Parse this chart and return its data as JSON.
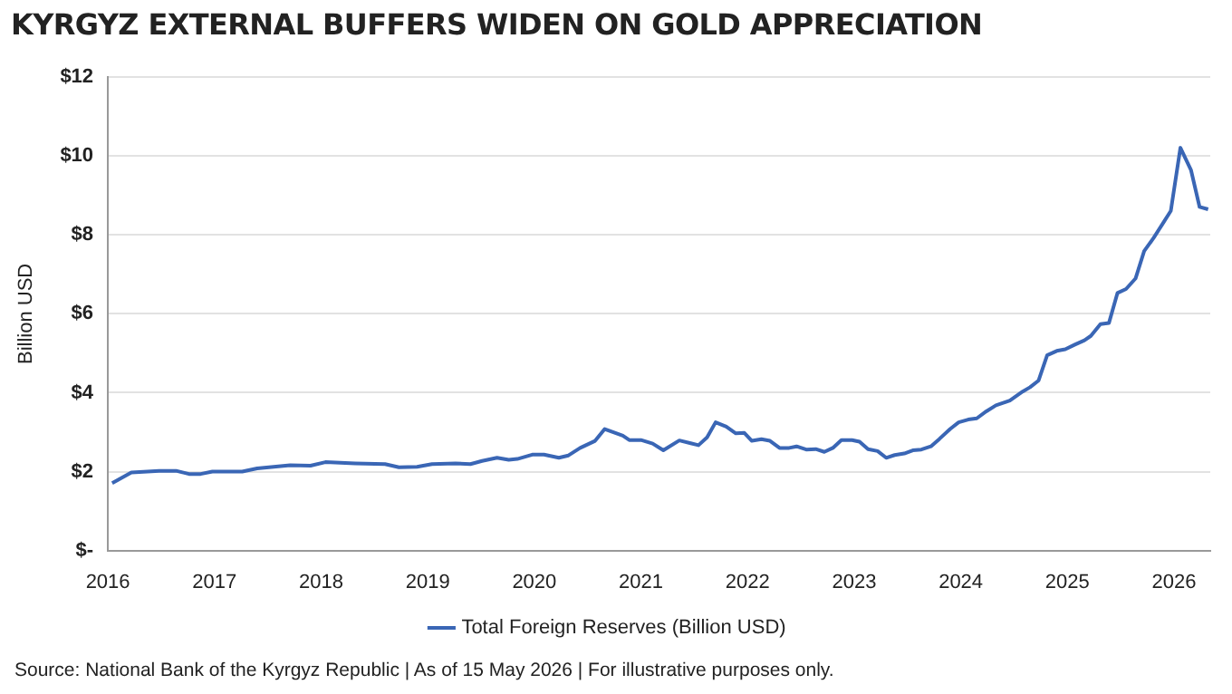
{
  "chart_data": {
    "type": "line",
    "title": "KYRGYZ EXTERNAL BUFFERS WIDEN ON GOLD APPRECIATION",
    "ylabel": "Billion USD",
    "annotations": [
      "Source: National Bank of the Kyrgyz Republic | As of 15 May 2026 | For illustrative purposes only."
    ],
    "xlim": [
      2016,
      2026.34
    ],
    "xticks": [
      2016,
      2017,
      2018,
      2019,
      2020,
      2021,
      2022,
      2023,
      2024,
      2025,
      2026
    ],
    "ylim": [
      0,
      12
    ],
    "yticks": [
      {
        "value": 0,
        "label": "$-"
      },
      {
        "value": 2,
        "label": "$2"
      },
      {
        "value": 4,
        "label": "$4"
      },
      {
        "value": 6,
        "label": "$6"
      },
      {
        "value": 8,
        "label": "$8"
      },
      {
        "value": 10,
        "label": "$10"
      },
      {
        "value": 12,
        "label": "$12"
      }
    ],
    "grid": "y",
    "legend": "bottom",
    "marker": "none",
    "line_style": "solid",
    "series": [
      {
        "name": "Total Foreign Reserves (Billion USD)",
        "color": "#3a66b5",
        "x": [
          2016.04,
          2016.22,
          2016.37,
          2016.48,
          2016.64,
          2016.76,
          2016.87,
          2016.98,
          2017.26,
          2017.4,
          2017.71,
          2017.9,
          2018.04,
          2018.32,
          2018.6,
          2018.73,
          2018.9,
          2019.04,
          2019.26,
          2019.4,
          2019.51,
          2019.65,
          2019.76,
          2019.84,
          2019.98,
          2020.09,
          2020.23,
          2020.32,
          2020.43,
          2020.57,
          2020.66,
          2020.76,
          2020.83,
          2020.89,
          2021.0,
          2021.11,
          2021.21,
          2021.36,
          2021.54,
          2021.62,
          2021.7,
          2021.8,
          2021.89,
          2021.97,
          2022.04,
          2022.13,
          2022.21,
          2022.3,
          2022.39,
          2022.46,
          2022.55,
          2022.64,
          2022.72,
          2022.8,
          2022.88,
          2022.98,
          2023.05,
          2023.13,
          2023.22,
          2023.3,
          2023.38,
          2023.47,
          2023.55,
          2023.63,
          2023.72,
          2023.8,
          2023.9,
          2023.98,
          2024.07,
          2024.15,
          2024.24,
          2024.33,
          2024.46,
          2024.58,
          2024.65,
          2024.73,
          2024.81,
          2024.9,
          2024.98,
          2025.07,
          2025.16,
          2025.22,
          2025.31,
          2025.39,
          2025.47,
          2025.55,
          2025.64,
          2025.72,
          2025.81,
          2025.89,
          2025.97,
          2026.06,
          2026.16,
          2026.24,
          2026.32
        ],
        "values": [
          1.71,
          1.98,
          2.0,
          2.02,
          2.02,
          1.94,
          1.94,
          2.0,
          2.0,
          2.08,
          2.16,
          2.15,
          2.24,
          2.21,
          2.19,
          2.11,
          2.12,
          2.19,
          2.21,
          2.19,
          2.27,
          2.35,
          2.3,
          2.32,
          2.43,
          2.43,
          2.35,
          2.41,
          2.6,
          2.78,
          3.08,
          2.98,
          2.91,
          2.8,
          2.8,
          2.71,
          2.54,
          2.79,
          2.67,
          2.87,
          3.25,
          3.14,
          2.97,
          2.98,
          2.78,
          2.82,
          2.78,
          2.6,
          2.6,
          2.64,
          2.56,
          2.57,
          2.5,
          2.6,
          2.8,
          2.8,
          2.76,
          2.57,
          2.52,
          2.35,
          2.42,
          2.46,
          2.54,
          2.56,
          2.64,
          2.83,
          3.08,
          3.25,
          3.32,
          3.35,
          3.53,
          3.68,
          3.8,
          4.03,
          4.14,
          4.31,
          4.95,
          5.06,
          5.1,
          5.22,
          5.33,
          5.44,
          5.74,
          5.77,
          6.53,
          6.63,
          6.9,
          7.59,
          7.93,
          8.27,
          8.61,
          10.21,
          9.64,
          8.71,
          8.65
        ]
      }
    ]
  }
}
